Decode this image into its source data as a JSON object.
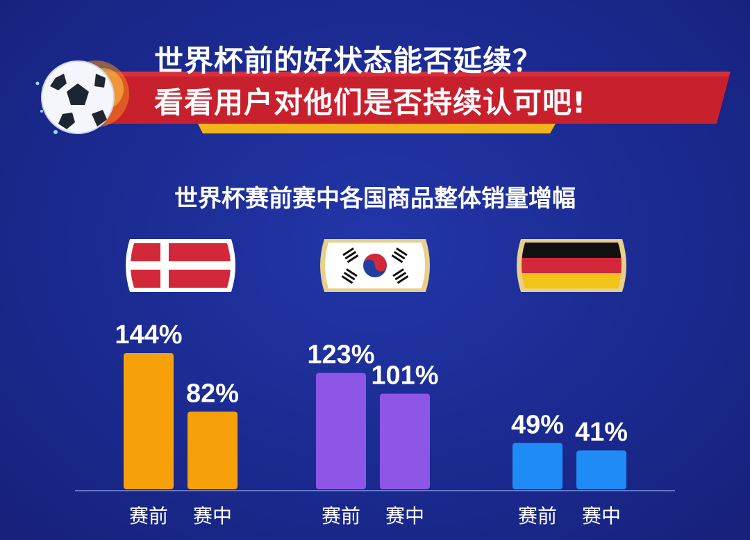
{
  "header": {
    "line1": "世界杯前的好状态能否延续？",
    "line2": "看看用户对他们是否持续认可吧!"
  },
  "colors": {
    "background": "#1b2a90",
    "banner_red": "#c9202e",
    "banner_gold": "#f2b41c",
    "denmark_bar": "#f7a10a",
    "korea_bar": "#8e56e6",
    "germany_bar": "#1f8cf5"
  },
  "icons": [
    "soccer-ball-icon",
    "denmark-flag-icon",
    "korea-flag-icon",
    "germany-flag-icon"
  ],
  "chart_data": {
    "type": "bar",
    "title": "世界杯赛前赛中各国商品整体销量增幅",
    "groups": [
      "denmark",
      "korea",
      "germany"
    ],
    "categories": [
      "赛前",
      "赛中"
    ],
    "series": [
      {
        "values": [
          144,
          82
        ],
        "labels": [
          "144%",
          "82%"
        ],
        "color": "#f7a10a"
      },
      {
        "values": [
          123,
          101
        ],
        "labels": [
          "123%",
          "101%"
        ],
        "color": "#8e56e6"
      },
      {
        "values": [
          49,
          41
        ],
        "labels": [
          "49%",
          "41%"
        ],
        "color": "#1f8cf5"
      }
    ],
    "unit": "%",
    "ylim": [
      0,
      144
    ],
    "grid": false,
    "legend": "flags above groups"
  }
}
